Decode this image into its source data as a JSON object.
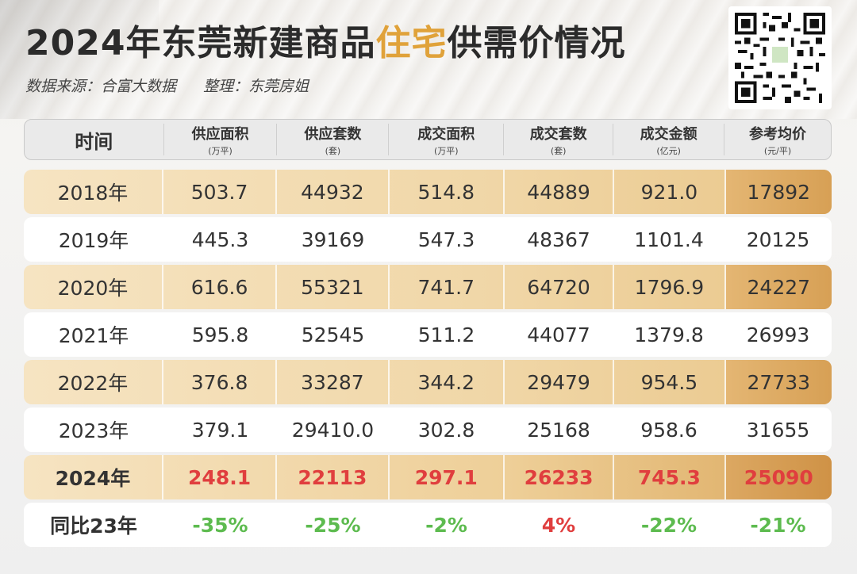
{
  "title": {
    "prefix": "2024年东莞新建商品",
    "highlight": "住宅",
    "suffix": "供需价情况"
  },
  "source": {
    "data_source": "数据来源：合富大数据",
    "compiled_by": "整理：东莞房姐"
  },
  "qr_code": {
    "icon": "qr-code-icon"
  },
  "header": [
    {
      "label": "时间",
      "unit": ""
    },
    {
      "label": "供应面积",
      "unit": "(万平)"
    },
    {
      "label": "供应套数",
      "unit": "(套)"
    },
    {
      "label": "成交面积",
      "unit": "(万平)"
    },
    {
      "label": "成交套数",
      "unit": "(套)"
    },
    {
      "label": "成交金额",
      "unit": "(亿元)"
    },
    {
      "label": "参考均价",
      "unit": "(元/平)"
    }
  ],
  "rows": [
    [
      "2018年",
      "503.7",
      "44932",
      "514.8",
      "44889",
      "921.0",
      "17892"
    ],
    [
      "2019年",
      "445.3",
      "39169",
      "547.3",
      "48367",
      "1101.4",
      "20125"
    ],
    [
      "2020年",
      "616.6",
      "55321",
      "741.7",
      "64720",
      "1796.9",
      "24227"
    ],
    [
      "2021年",
      "595.8",
      "52545",
      "511.2",
      "44077",
      "1379.8",
      "26993"
    ],
    [
      "2022年",
      "376.8",
      "33287",
      "344.2",
      "29479",
      "954.5",
      "27733"
    ],
    [
      "2023年",
      "379.1",
      "29410.0",
      "302.8",
      "25168",
      "958.6",
      "31655"
    ],
    [
      "2024年",
      "248.1",
      "22113",
      "297.1",
      "26233",
      "745.3",
      "25090"
    ]
  ],
  "yoy": [
    "同比23年",
    "-35%",
    "-25%",
    "-2%",
    "4%",
    "-22%",
    "-21%"
  ],
  "colors": {
    "highlight": "#e0a23a",
    "negative_change": "#5dbb4f",
    "positive_change": "#e03e3e",
    "current_year_value": "#e03e3e"
  }
}
